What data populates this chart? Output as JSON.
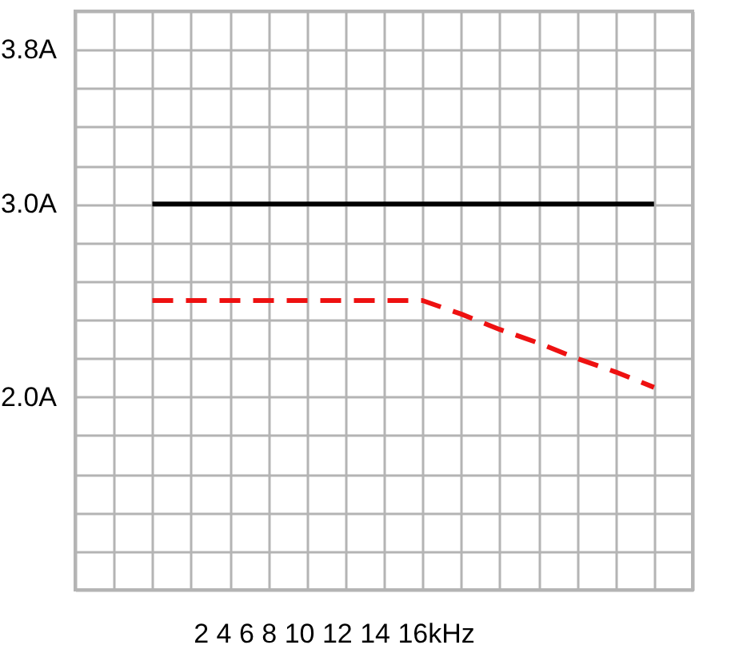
{
  "chart_data": {
    "type": "line",
    "xlabel": "2 4 6 8 10 12 14 16kHz",
    "categories": [
      null,
      null,
      null,
      null,
      null,
      null,
      null,
      null,
      null,
      null,
      null,
      null,
      null,
      null
    ],
    "series": [
      {
        "color": "#000000",
        "line_style": "solid",
        "values": [
          3.0,
          3.0,
          3.0,
          3.0,
          3.0,
          3.0,
          3.0,
          3.0,
          3.0,
          3.0,
          3.0,
          3.0,
          3.0,
          3.0
        ]
      },
      {
        "color": "#ee1111",
        "line_style": "dashed",
        "values": [
          2.5,
          2.5,
          2.5,
          2.5,
          2.5,
          2.5,
          2.5,
          2.5,
          2.43,
          2.35,
          2.28,
          2.2,
          2.13,
          2.05
        ]
      }
    ],
    "ylim": [
      1.0,
      4.0
    ],
    "yticks": [
      {
        "value": 1.0,
        "label": null
      },
      {
        "value": 1.2,
        "label": null
      },
      {
        "value": 1.4,
        "label": null
      },
      {
        "value": 1.6,
        "label": null
      },
      {
        "value": 1.8,
        "label": null
      },
      {
        "value": 2.0,
        "label": "2.0A"
      },
      {
        "value": 2.2,
        "label": null
      },
      {
        "value": 2.4,
        "label": null
      },
      {
        "value": 2.6,
        "label": null
      },
      {
        "value": 2.8,
        "label": null
      },
      {
        "value": 3.0,
        "label": "3.0A"
      },
      {
        "value": 3.2,
        "label": null
      },
      {
        "value": 3.4,
        "label": null
      },
      {
        "value": 3.6,
        "label": null
      },
      {
        "value": 3.8,
        "label": "3.8A"
      },
      {
        "value": 4.0,
        "label": null
      }
    ],
    "tick_labels": "y",
    "grid": true
  }
}
